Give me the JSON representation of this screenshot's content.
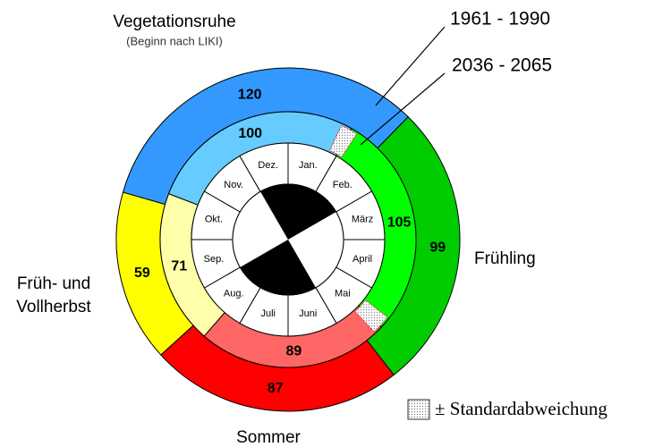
{
  "chart_data": {
    "type": "donut",
    "categories": [
      "Vegetationsruhe",
      "Frühling",
      "Sommer",
      "Früh- und Vollherbst"
    ],
    "annotation": "(Beginn nach LIKI)",
    "series": [
      {
        "name": "1961 - 1990",
        "colors": [
          "#3399ff",
          "#00cc00",
          "#ff0000",
          "#ffff00"
        ],
        "values": [
          120,
          99,
          87,
          59
        ]
      },
      {
        "name": "2036 - 2065",
        "colors": [
          "#66ccff",
          "#00ff00",
          "#ff6666",
          "#ffffaa"
        ],
        "values": [
          100,
          105,
          89,
          71
        ]
      }
    ],
    "months": [
      "Jan.",
      "Feb.",
      "März",
      "April",
      "Mai",
      "Juni",
      "Juli",
      "Aug.",
      "Sep.",
      "Okt.",
      "Nov.",
      "Dez."
    ],
    "legend": "± Standardabweichung"
  }
}
